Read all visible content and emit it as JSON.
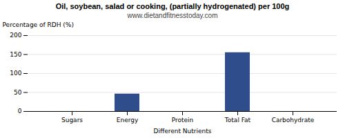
{
  "chart_data": {
    "type": "bar",
    "title": "Oil, soybean, salad or cooking, (partially hydrogenated) per 100g",
    "subtitle": "www.dietandfitnesstoday.com",
    "xlabel": "Different Nutrients",
    "ylabel": "Percentage of RDH (%)",
    "categories": [
      "Sugars",
      "Energy",
      "Protein",
      "Total Fat",
      "Carbohydrate"
    ],
    "values": [
      0,
      46,
      0,
      155,
      0
    ],
    "color": "#2e4d8a",
    "ylim": [
      0,
      200
    ],
    "yticks": [
      0,
      50,
      100,
      150,
      200
    ],
    "grid": true
  }
}
